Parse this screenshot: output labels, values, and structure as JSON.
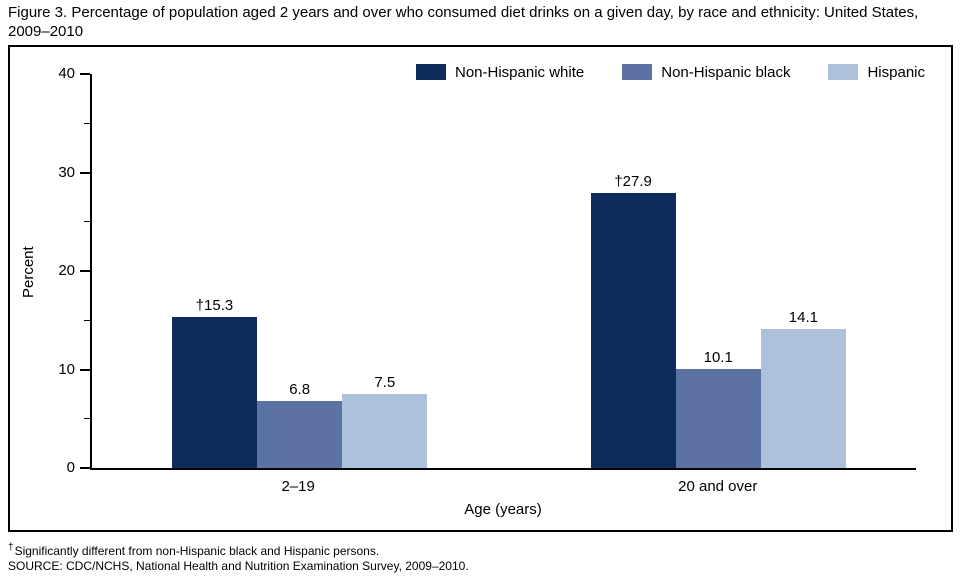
{
  "figure": {
    "title": "Figure 3. Percentage of population aged 2 years and over who consumed diet drinks on a given day, by race and ethnicity: United States, 2009–2010",
    "footnote_marker": "†",
    "footnote_significance": "Significantly different from non-Hispanic black and Hispanic persons.",
    "footnote_source": "SOURCE: CDC/NCHS, National Health and Nutrition Examination Survey, 2009–2010."
  },
  "chart_data": {
    "type": "bar",
    "title": "Percentage of population aged 2 years and over who consumed diet drinks on a given day, by race and ethnicity: United States, 2009–2010",
    "categories": [
      "2–19",
      "20 and over"
    ],
    "series": [
      {
        "name": "Non-Hispanic white",
        "color": "#0d2b5b",
        "values": [
          15.3,
          27.9
        ],
        "value_labels": [
          "†15.3",
          "†27.9"
        ]
      },
      {
        "name": "Non-Hispanic black",
        "color": "#5b72a2",
        "values": [
          6.8,
          10.1
        ],
        "value_labels": [
          "6.8",
          "10.1"
        ]
      },
      {
        "name": "Hispanic",
        "color": "#aec1dc",
        "values": [
          7.5,
          14.1
        ],
        "value_labels": [
          "7.5",
          "14.1"
        ]
      }
    ],
    "xlabel": "Age (years)",
    "ylabel": "Percent",
    "ylim": [
      0,
      40
    ],
    "yticks": [
      0,
      10,
      20,
      30,
      40
    ],
    "yticks_minor": [
      5,
      15,
      25,
      35
    ],
    "legend_position": "top-right-inside",
    "grid": false,
    "axis_color": "#000000",
    "background_color": "#ffffff"
  }
}
